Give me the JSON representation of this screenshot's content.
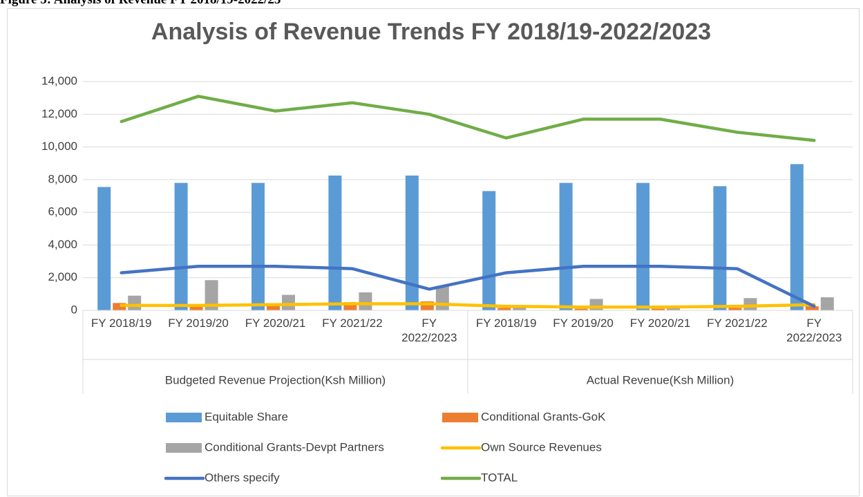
{
  "figure_caption": "Figure 5: Analysis of Revenue FY 2018/19-2022/23",
  "chart_data": {
    "type": "bar",
    "title": "Analysis of Revenue Trends FY 2018/19-2022/2023",
    "categories": [
      "FY 2018/19",
      "FY 2019/20",
      "FY 2020/21",
      "FY 2021/22",
      "FY 2022/2023",
      "FY 2018/19",
      "FY 2019/20",
      "FY 2020/21",
      "FY 2021/22",
      "FY 2022/2023"
    ],
    "groups": [
      "Budgeted Revenue Projection(Ksh Million)",
      "Actual Revenue(Ksh Million)"
    ],
    "ylim": [
      0,
      14000
    ],
    "yticks": [
      0,
      {
        "value": 2000,
        "label": "2,000"
      },
      {
        "value": 4000,
        "label": "4,000"
      },
      {
        "value": 6000,
        "label": "6,000"
      },
      {
        "value": 8000,
        "label": "8,000"
      },
      {
        "value": 10000,
        "label": "10,000"
      },
      {
        "value": 12000,
        "label": "12,000"
      },
      {
        "value": 14000,
        "label": "14,000"
      }
    ],
    "grid": true,
    "legend": "bottom",
    "series": [
      {
        "name": "Equitable Share",
        "type": "bar",
        "color": "#5b9bd5",
        "values": [
          7550,
          7800,
          7800,
          8250,
          8250,
          7300,
          7800,
          7800,
          7600,
          8950
        ]
      },
      {
        "name": "Conditional  Grants-GoK",
        "type": "bar",
        "color": "#ed7d31",
        "values": [
          450,
          350,
          350,
          500,
          550,
          150,
          100,
          100,
          150,
          250
        ]
      },
      {
        "name": "Conditional  Grants-Devpt Partners",
        "type": "bar",
        "color": "#a5a5a5",
        "values": [
          900,
          1850,
          950,
          1100,
          1500,
          200,
          700,
          200,
          750,
          800
        ]
      },
      {
        "name": "Own Source Revenues",
        "type": "line",
        "color": "#ffc000",
        "values": [
          300,
          300,
          350,
          400,
          400,
          250,
          200,
          200,
          250,
          350
        ]
      },
      {
        "name": "Others specify",
        "type": "line",
        "color": "#4472c4",
        "values": [
          2300,
          2700,
          2700,
          2550,
          1300,
          2300,
          2700,
          2700,
          2550,
          250
        ]
      },
      {
        "name": "TOTAL",
        "type": "line",
        "color": "#70ad47",
        "values": [
          11550,
          13100,
          12200,
          12700,
          12000,
          10550,
          11700,
          11700,
          10900,
          10400
        ]
      }
    ]
  }
}
